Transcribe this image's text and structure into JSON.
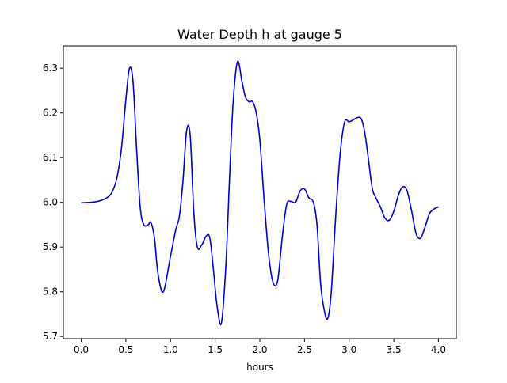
{
  "chart_data": {
    "type": "line",
    "title": "Water Depth h at gauge 5",
    "xlabel": "hours",
    "ylabel": "",
    "xlim": [
      -0.2,
      4.2
    ],
    "ylim": [
      5.695,
      6.35
    ],
    "xticks": [
      0.0,
      0.5,
      1.0,
      1.5,
      2.0,
      2.5,
      3.0,
      3.5,
      4.0
    ],
    "xtick_labels": [
      "0.0",
      "0.5",
      "1.0",
      "1.5",
      "2.0",
      "2.5",
      "3.0",
      "3.5",
      "4.0"
    ],
    "yticks": [
      5.7,
      5.8,
      5.9,
      6.0,
      6.1,
      6.2,
      6.3
    ],
    "ytick_labels": [
      "5.7",
      "5.8",
      "5.9",
      "6.0",
      "6.1",
      "6.2",
      "6.3"
    ],
    "grid": false,
    "series": [
      {
        "color": "#0000cc",
        "x": [
          0.0,
          0.1,
          0.2,
          0.3,
          0.35,
          0.4,
          0.45,
          0.5,
          0.54,
          0.58,
          0.62,
          0.66,
          0.7,
          0.75,
          0.78,
          0.82,
          0.86,
          0.92,
          1.0,
          1.06,
          1.1,
          1.14,
          1.18,
          1.22,
          1.26,
          1.3,
          1.35,
          1.4,
          1.44,
          1.48,
          1.52,
          1.57,
          1.62,
          1.66,
          1.7,
          1.75,
          1.8,
          1.84,
          1.88,
          1.92,
          1.96,
          2.0,
          2.05,
          2.1,
          2.15,
          2.2,
          2.25,
          2.3,
          2.35,
          2.4,
          2.45,
          2.5,
          2.55,
          2.6,
          2.64,
          2.68,
          2.72,
          2.76,
          2.8,
          2.85,
          2.9,
          2.95,
          3.0,
          3.05,
          3.1,
          3.14,
          3.18,
          3.22,
          3.26,
          3.3,
          3.35,
          3.4,
          3.45,
          3.5,
          3.55,
          3.6,
          3.65,
          3.7,
          3.75,
          3.8,
          3.85,
          3.9,
          3.95,
          4.0
        ],
        "y": [
          5.999,
          6.0,
          6.003,
          6.012,
          6.025,
          6.055,
          6.12,
          6.23,
          6.3,
          6.27,
          6.12,
          5.99,
          5.95,
          5.95,
          5.955,
          5.92,
          5.84,
          5.8,
          5.88,
          5.94,
          5.97,
          6.05,
          6.16,
          6.15,
          5.98,
          5.9,
          5.905,
          5.925,
          5.92,
          5.85,
          5.77,
          5.73,
          5.86,
          6.05,
          6.22,
          6.315,
          6.27,
          6.235,
          6.225,
          6.225,
          6.2,
          6.14,
          6.0,
          5.88,
          5.82,
          5.825,
          5.92,
          5.995,
          6.002,
          6.0,
          6.025,
          6.03,
          6.01,
          6.0,
          5.95,
          5.82,
          5.76,
          5.74,
          5.8,
          5.97,
          6.11,
          6.18,
          6.18,
          6.185,
          6.19,
          6.185,
          6.15,
          6.09,
          6.03,
          6.01,
          5.99,
          5.965,
          5.96,
          5.98,
          6.015,
          6.035,
          6.025,
          5.98,
          5.93,
          5.92,
          5.945,
          5.975,
          5.985,
          5.99
        ]
      }
    ]
  }
}
